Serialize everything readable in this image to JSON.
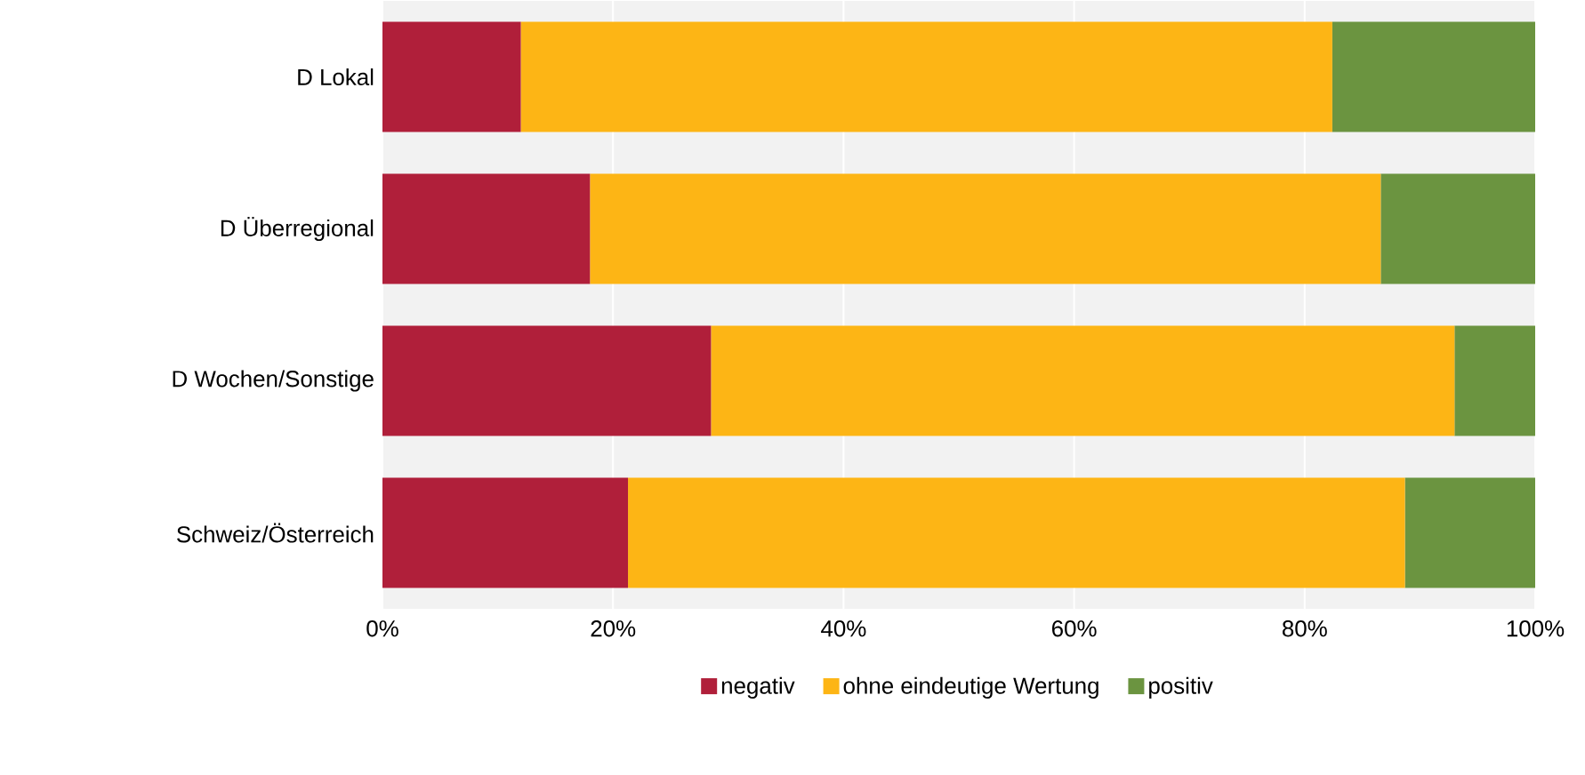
{
  "chart_data": {
    "type": "bar",
    "orientation": "horizontal",
    "stacked": true,
    "categories": [
      "D Lokal",
      "D Überregional",
      "D Wochen/Sonstige",
      "Schweiz/Österreich"
    ],
    "series": [
      {
        "name": "negativ",
        "color": "#b01f3a",
        "values": [
          12,
          18,
          28.5,
          21.3
        ]
      },
      {
        "name": "ohne eindeutige Wertung",
        "color": "#fdb515",
        "values": [
          70.4,
          68.6,
          64.5,
          67.4
        ]
      },
      {
        "name": "positiv",
        "color": "#6b9440",
        "values": [
          17.6,
          13.4,
          7,
          11.3
        ]
      }
    ],
    "xlim": [
      0,
      100
    ],
    "xticks": [
      {
        "value": 0,
        "label": "0%"
      },
      {
        "value": 20,
        "label": "20%"
      },
      {
        "value": 40,
        "label": "40%"
      },
      {
        "value": 60,
        "label": "60%"
      },
      {
        "value": 80,
        "label": "80%"
      },
      {
        "value": 100,
        "label": "100%"
      }
    ],
    "grid": "x",
    "legend": "bottom"
  }
}
